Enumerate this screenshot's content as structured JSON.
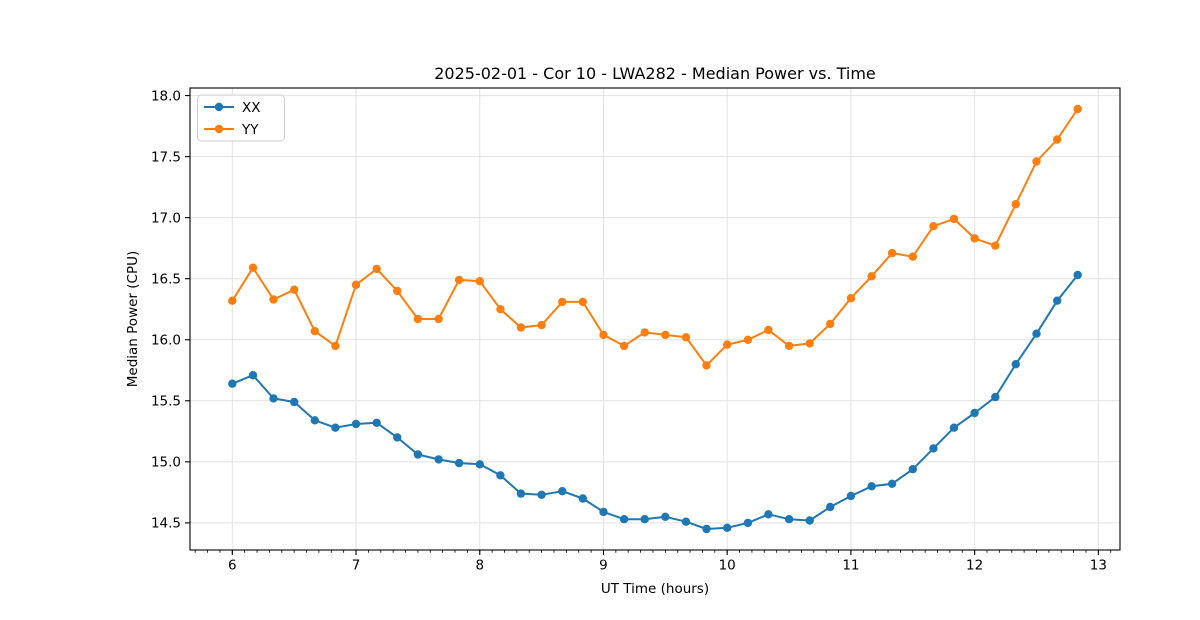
{
  "chart_data": {
    "type": "line",
    "title": "2025-02-01 - Cor 10 - LWA282 - Median Power vs. Time",
    "xlabel": "UT Time (hours)",
    "ylabel": "Median Power (CPU)",
    "x": [
      6.0,
      6.167,
      6.333,
      6.5,
      6.667,
      6.833,
      7.0,
      7.167,
      7.333,
      7.5,
      7.667,
      7.833,
      8.0,
      8.167,
      8.333,
      8.5,
      8.667,
      8.833,
      9.0,
      9.167,
      9.333,
      9.5,
      9.667,
      9.833,
      10.0,
      10.167,
      10.333,
      10.5,
      10.667,
      10.833,
      11.0,
      11.167,
      11.333,
      11.5,
      11.667,
      11.833,
      12.0,
      12.167,
      12.333,
      12.5,
      12.667,
      12.833
    ],
    "series": [
      {
        "name": "XX",
        "color": "#1f77b4",
        "values": [
          15.64,
          15.71,
          15.52,
          15.49,
          15.34,
          15.28,
          15.31,
          15.32,
          15.2,
          15.06,
          15.02,
          14.99,
          14.98,
          14.89,
          14.74,
          14.73,
          14.76,
          14.7,
          14.59,
          14.53,
          14.53,
          14.55,
          14.51,
          14.45,
          14.46,
          14.5,
          14.57,
          14.53,
          14.52,
          14.63,
          14.72,
          14.8,
          14.82,
          14.94,
          15.11,
          15.28,
          15.4,
          15.53,
          15.8,
          16.05,
          16.32,
          16.53
        ]
      },
      {
        "name": "YY",
        "color": "#ff7f0e",
        "values": [
          16.32,
          16.59,
          16.33,
          16.41,
          16.07,
          15.95,
          16.45,
          16.58,
          16.4,
          16.17,
          16.17,
          16.49,
          16.48,
          16.25,
          16.1,
          16.12,
          16.31,
          16.31,
          16.04,
          15.95,
          16.06,
          16.04,
          16.02,
          15.79,
          15.96,
          16.0,
          16.08,
          15.95,
          15.97,
          16.13,
          16.34,
          16.52,
          16.71,
          16.68,
          16.93,
          16.99,
          16.83,
          16.77,
          17.11,
          17.46,
          17.64,
          17.89
        ]
      }
    ],
    "xticks": [
      6,
      7,
      8,
      9,
      10,
      11,
      12,
      13
    ],
    "yticks": [
      14.5,
      15.0,
      15.5,
      16.0,
      16.5,
      17.0,
      17.5,
      18.0
    ],
    "xlim": [
      5.658,
      13.175
    ],
    "ylim": [
      14.278,
      18.062
    ],
    "x_minor_step": 0.1,
    "grid": true,
    "legend_position": "upper-left",
    "colors": {
      "grid": "#e2e2e2",
      "spine": "#000000",
      "background": "#ffffff"
    }
  }
}
